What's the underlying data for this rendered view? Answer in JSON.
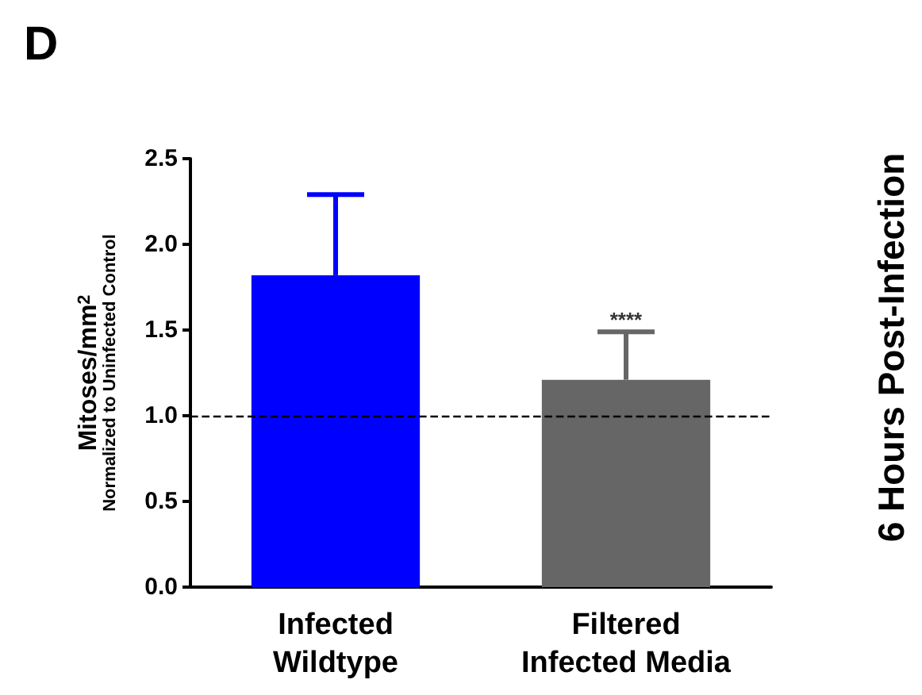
{
  "chart_data": {
    "type": "bar",
    "title": "D",
    "ylabel": "Mitoses/mm$^{2}$\nNormalized to Uninfected Control",
    "categories": [
      "Infected\nWildtype",
      "Filtered\nInfected Media"
    ],
    "values": [
      1.82,
      1.21
    ],
    "colors": [
      "#0000ff",
      "#666666"
    ],
    "errors": [
      [
        1.82,
        2.29
      ],
      [
        1.21,
        1.49
      ]
    ],
    "ylim": [
      0,
      2.5
    ],
    "yticks": [
      {
        "value": 0,
        "label": "0.0"
      },
      {
        "value": 0.5,
        "label": "0.5"
      },
      {
        "value": 1,
        "label": "1.0"
      },
      {
        "value": 1.5,
        "label": "1.5"
      },
      {
        "value": 2,
        "label": "2.0"
      },
      {
        "value": 2.5,
        "label": "2.5"
      }
    ],
    "ref_lines": [
      {
        "axis": "y",
        "value": 1,
        "color": "#000000",
        "line_style": "dashed"
      }
    ],
    "annotations": [
      {
        "text": "****",
        "x": "Filtered\nInfected Media",
        "y": 1.49
      },
      "6 Hours Post-Infection"
    ],
    "grid": false
  }
}
